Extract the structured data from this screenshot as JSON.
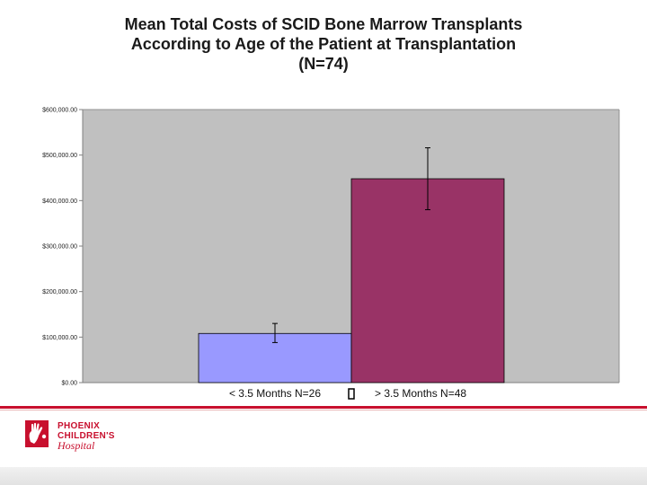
{
  "chart_data": {
    "type": "bar",
    "title_lines": [
      "Mean Total Costs of SCID Bone Marrow Transplants",
      "According to Age of the Patient at Transplantation",
      "(N=74)"
    ],
    "categories": [
      "< 3.5 Months N=26",
      "> 3.5 Months N=48"
    ],
    "values": [
      108000,
      448000
    ],
    "error_low": [
      88000,
      380000
    ],
    "error_high": [
      130000,
      516000
    ],
    "bar_colors": [
      "#9999ff",
      "#993366"
    ],
    "ylim": [
      0,
      600000
    ],
    "yticks": [
      0,
      100000,
      200000,
      300000,
      400000,
      500000,
      600000
    ],
    "ytick_labels": [
      "$0.00",
      "$100,000.00",
      "$200,000.00",
      "$300,000.00",
      "$400,000.00",
      "$500,000.00",
      "$600,000.00"
    ],
    "plot_background": "#c0c0c0",
    "grid": false,
    "legend": "none"
  },
  "footer": {
    "logo_lines": [
      "PHOENIX",
      "CHILDREN'S",
      "Hospital"
    ],
    "brand_color": "#c8102e"
  }
}
